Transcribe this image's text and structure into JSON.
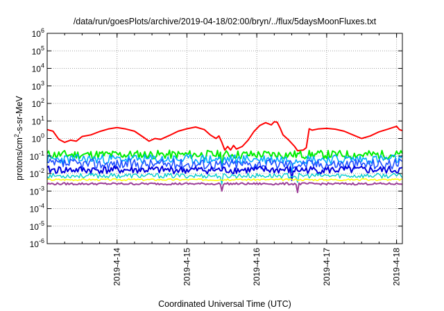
{
  "chart_data": {
    "type": "line",
    "title": "/data/run/goesPlots/archive/2019-04-18/02:00/bryn/../flux/5daysMoonFluxes.txt",
    "xlabel": "Coordinated Universal Time (UTC)",
    "ylabel": {
      "prefix": "protons/cm",
      "sup": "2",
      "suffix": "-s-sr-MeV"
    },
    "x_scale": "time",
    "xlim": [
      "2019-04-13T00:00",
      "2019-04-18T02:00"
    ],
    "y_scale": "log",
    "ylim": [
      1e-06,
      1000000.0
    ],
    "grid": true,
    "legend": "none",
    "x_ticks": [
      {
        "t": "2019-04-14T00:00",
        "label": "2019-4-14"
      },
      {
        "t": "2019-04-15T00:00",
        "label": "2019-4-15"
      },
      {
        "t": "2019-04-16T00:00",
        "label": "2019-4-16"
      },
      {
        "t": "2019-04-17T00:00",
        "label": "2019-4-17"
      },
      {
        "t": "2019-04-18T00:00",
        "label": "2019-4-18"
      }
    ],
    "y_ticks": [
      {
        "exp": -6,
        "label": "10",
        "sup": "-6"
      },
      {
        "exp": -5,
        "label": "10",
        "sup": "-5"
      },
      {
        "exp": -4,
        "label": "10",
        "sup": "-4"
      },
      {
        "exp": -3,
        "label": "10",
        "sup": "-3"
      },
      {
        "exp": -2,
        "label": "10",
        "sup": "-2"
      },
      {
        "exp": -1,
        "label": "10",
        "sup": "-1"
      },
      {
        "exp": 0,
        "label": "10",
        "sup": "0"
      },
      {
        "exp": 1,
        "label": "10",
        "sup": "1"
      },
      {
        "exp": 2,
        "label": "10",
        "sup": "2"
      },
      {
        "exp": 3,
        "label": "10",
        "sup": "3"
      },
      {
        "exp": 4,
        "label": "10",
        "sup": "4"
      },
      {
        "exp": 5,
        "label": "10",
        "sup": "5"
      },
      {
        "exp": 6,
        "label": "10",
        "sup": "6"
      }
    ],
    "series": [
      {
        "color": "#ff0000",
        "width": 2,
        "points": [
          [
            "2019-04-13T00:00",
            3.2
          ],
          [
            "2019-04-13T02:00",
            2.6
          ],
          [
            "2019-04-13T04:00",
            0.9
          ],
          [
            "2019-04-13T06:00",
            0.6
          ],
          [
            "2019-04-13T08:00",
            0.8
          ],
          [
            "2019-04-13T10:00",
            0.7
          ],
          [
            "2019-04-13T12:00",
            1.3
          ],
          [
            "2019-04-13T15:00",
            1.6
          ],
          [
            "2019-04-13T18:00",
            2.5
          ],
          [
            "2019-04-13T21:00",
            3.5
          ],
          [
            "2019-04-14T00:00",
            4.2
          ],
          [
            "2019-04-14T03:00",
            3.5
          ],
          [
            "2019-04-14T06:00",
            2.6
          ],
          [
            "2019-04-14T09:00",
            1.2
          ],
          [
            "2019-04-14T11:00",
            0.7
          ],
          [
            "2019-04-14T13:00",
            1.0
          ],
          [
            "2019-04-14T15:00",
            0.9
          ],
          [
            "2019-04-14T18:00",
            1.5
          ],
          [
            "2019-04-14T21:00",
            2.6
          ],
          [
            "2019-04-15T00:00",
            3.6
          ],
          [
            "2019-04-15T03:00",
            4.5
          ],
          [
            "2019-04-15T06:00",
            3.2
          ],
          [
            "2019-04-15T08:00",
            1.6
          ],
          [
            "2019-04-15T10:00",
            1.0
          ],
          [
            "2019-04-15T11:00",
            1.4
          ],
          [
            "2019-04-15T12:00",
            0.6
          ],
          [
            "2019-04-15T13:00",
            0.22
          ],
          [
            "2019-04-15T14:00",
            0.35
          ],
          [
            "2019-04-15T15:00",
            0.22
          ],
          [
            "2019-04-15T16:00",
            0.4
          ],
          [
            "2019-04-15T17:00",
            0.25
          ],
          [
            "2019-04-15T19:00",
            0.35
          ],
          [
            "2019-04-15T21:00",
            0.8
          ],
          [
            "2019-04-15T23:00",
            2.5
          ],
          [
            "2019-04-16T01:00",
            5.5
          ],
          [
            "2019-04-16T03:00",
            8.0
          ],
          [
            "2019-04-16T05:00",
            6.0
          ],
          [
            "2019-04-16T06:00",
            9.0
          ],
          [
            "2019-04-16T07:00",
            8.5
          ],
          [
            "2019-04-16T08:00",
            4.0
          ],
          [
            "2019-04-16T09:00",
            1.6
          ],
          [
            "2019-04-16T11:00",
            0.8
          ],
          [
            "2019-04-16T13:00",
            0.35
          ],
          [
            "2019-04-16T14:00",
            0.2
          ],
          [
            "2019-04-16T16:00",
            0.22
          ],
          [
            "2019-04-16T17:00",
            0.3
          ],
          [
            "2019-04-16T18:00",
            3.6
          ],
          [
            "2019-04-16T19:00",
            3.0
          ],
          [
            "2019-04-16T21:00",
            3.5
          ],
          [
            "2019-04-17T00:00",
            3.8
          ],
          [
            "2019-04-17T03:00",
            3.4
          ],
          [
            "2019-04-17T06:00",
            2.6
          ],
          [
            "2019-04-17T09:00",
            1.6
          ],
          [
            "2019-04-17T12:00",
            1.0
          ],
          [
            "2019-04-17T15:00",
            1.4
          ],
          [
            "2019-04-17T18:00",
            2.4
          ],
          [
            "2019-04-17T21:00",
            3.4
          ],
          [
            "2019-04-18T00:00",
            5.0
          ],
          [
            "2019-04-18T01:00",
            3.2
          ],
          [
            "2019-04-18T02:00",
            2.8
          ]
        ]
      },
      {
        "color": "#00ee00",
        "width": 2,
        "base": 0.12,
        "amp": 0.25,
        "seed": 11,
        "dips": [
          [
            "2019-04-15T12:00",
            0.5
          ]
        ]
      },
      {
        "color": "#00aaff",
        "width": 1.6,
        "base": 0.065,
        "amp": 0.28,
        "seed": 23,
        "dips": [
          [
            "2019-04-15T12:00",
            0.5
          ],
          [
            "2019-04-16T12:00",
            0.6
          ]
        ]
      },
      {
        "color": "#1f4fff",
        "width": 1.6,
        "base": 0.035,
        "amp": 0.3,
        "seed": 37,
        "dips": [
          [
            "2019-04-15T12:00",
            0.5
          ]
        ]
      },
      {
        "color": "#0000dd",
        "width": 2,
        "base": 0.016,
        "amp": 0.22,
        "seed": 41,
        "dips": [
          [
            "2019-04-16T12:00",
            0.6
          ]
        ]
      },
      {
        "color": "#00cccc",
        "width": 1.4,
        "base": 0.0075,
        "amp": 0.14,
        "seed": 53,
        "dips": [
          [
            "2019-04-15T12:00",
            0.6
          ],
          [
            "2019-04-16T14:00",
            0.5
          ]
        ]
      },
      {
        "color": "#ffff00",
        "width": 1.6,
        "base": 0.0045,
        "amp": 0.05,
        "seed": 67,
        "dips": []
      },
      {
        "color": "#9c3c96",
        "width": 2,
        "base": 0.0026,
        "amp": 0.06,
        "seed": 79,
        "dips": [
          [
            "2019-04-15T12:00",
            0.45
          ],
          [
            "2019-04-16T14:00",
            0.5
          ]
        ]
      }
    ]
  }
}
